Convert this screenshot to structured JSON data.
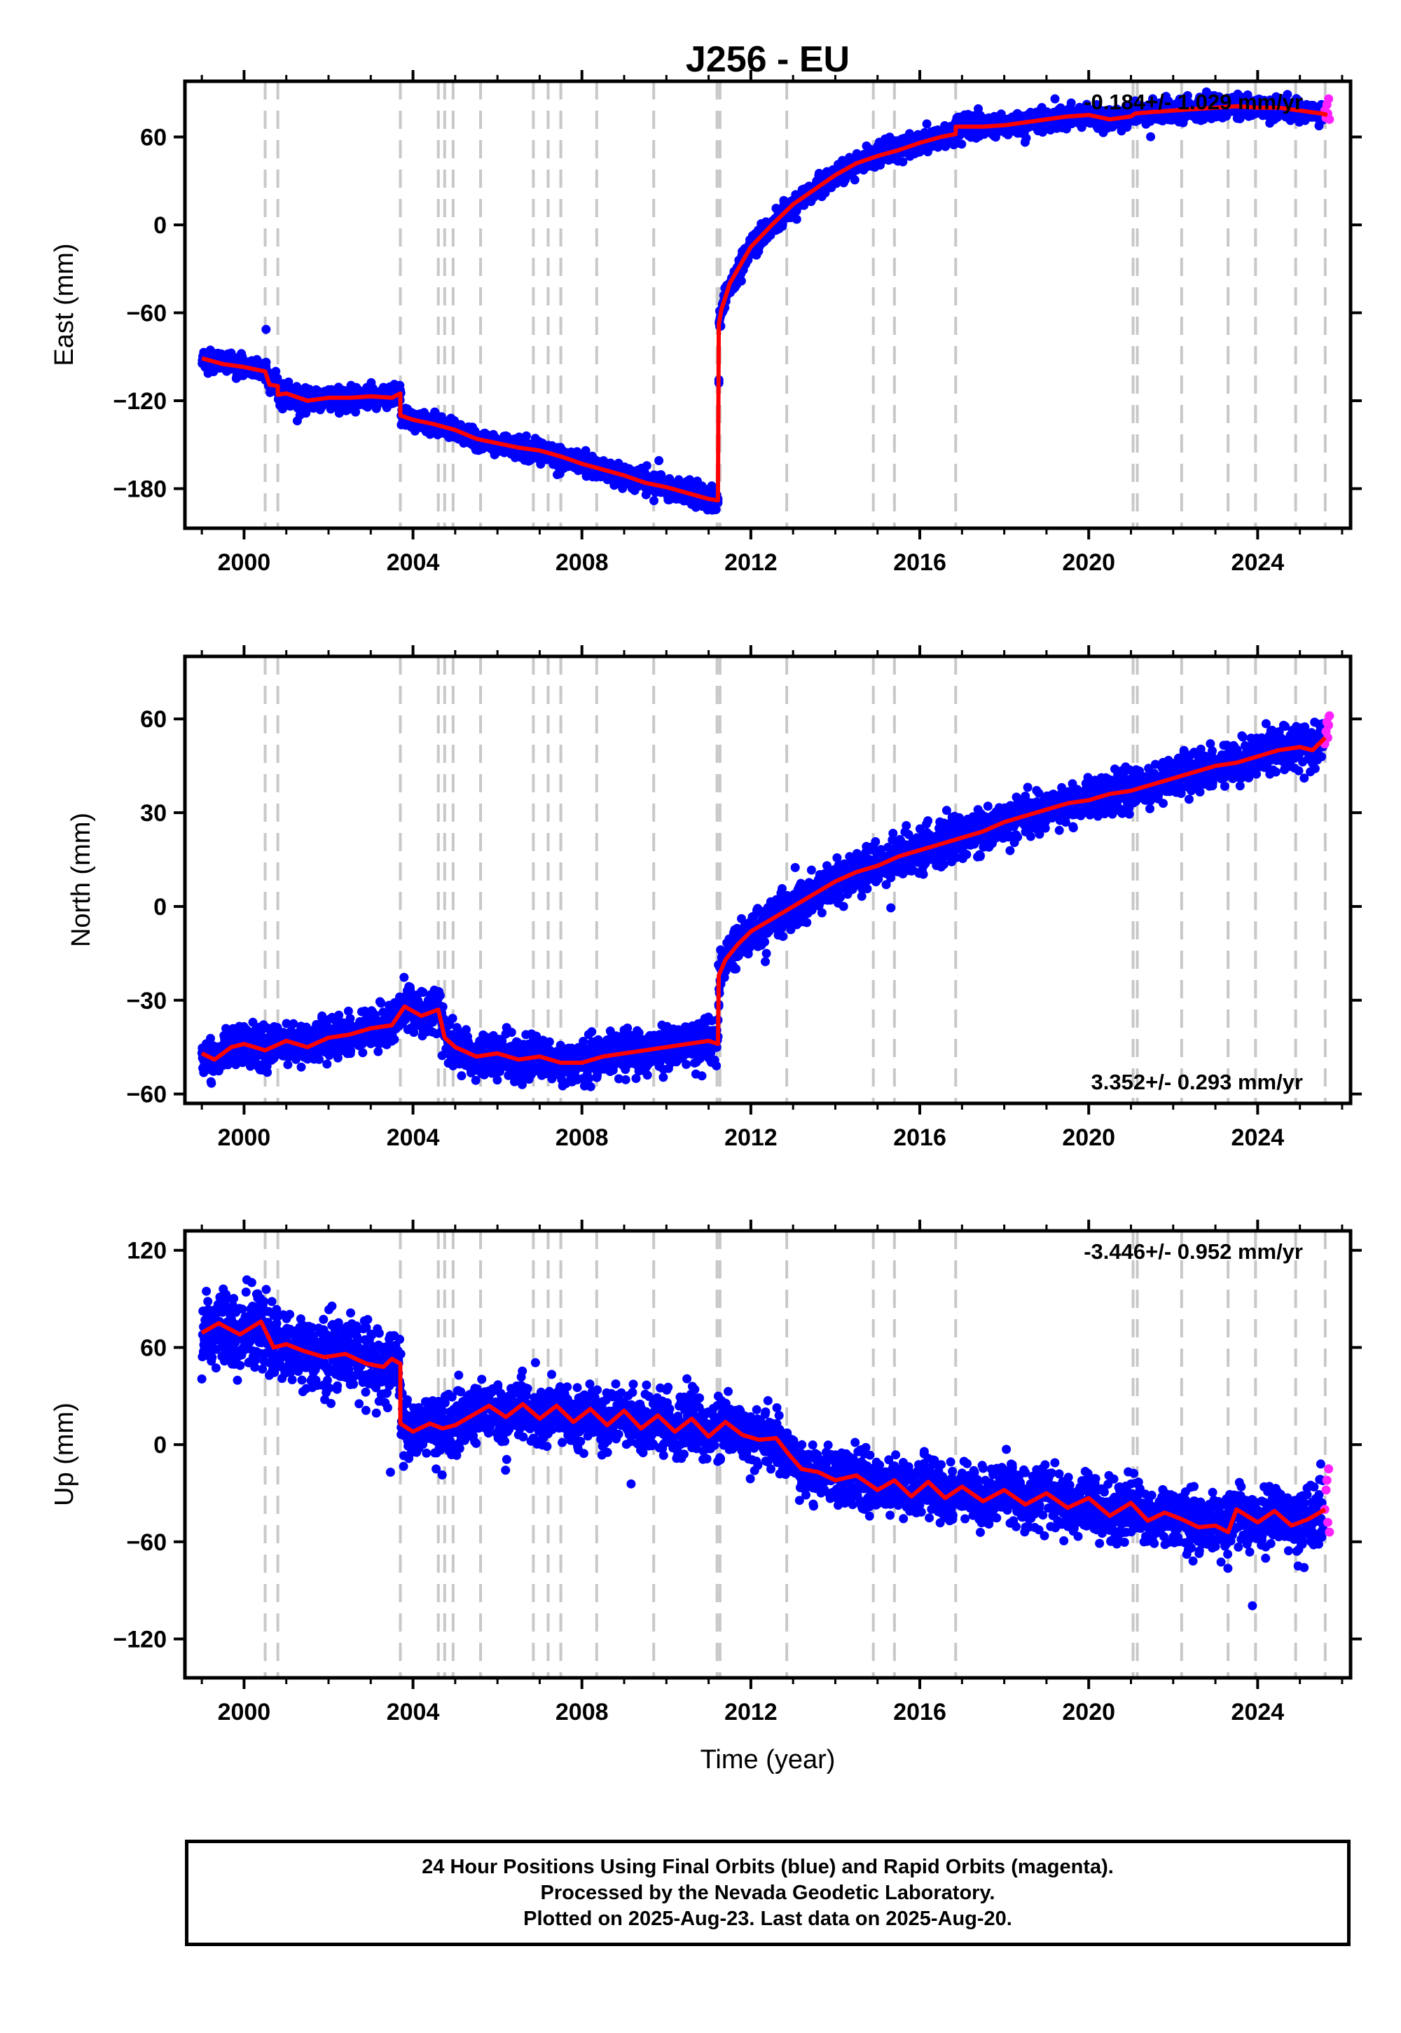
{
  "figure": {
    "title": "J256 - EU",
    "xlabel": "Time (year)",
    "footer_lines": [
      "24 Hour Positions Using Final Orbits (blue) and Rapid Orbits (magenta).",
      "Processed by the Nevada Geodetic Laboratory.",
      "Plotted on 2025-Aug-23. Last data on 2025-Aug-20."
    ],
    "colors": {
      "final": "#0000ff",
      "rapid": "#ff22ff",
      "model": "#ff0000",
      "event_line": "#c8c8c8"
    }
  },
  "chart_data": [
    {
      "type": "scatter",
      "ylabel": "East (mm)",
      "rate": "-0.184+/- 1.029 mm/yr",
      "rate_position": "top-right",
      "xlim": [
        1998.6,
        2026.2
      ],
      "ylim": [
        -207,
        98
      ],
      "xticks": [
        2000,
        2004,
        2008,
        2012,
        2016,
        2020,
        2024
      ],
      "yticks": [
        -180,
        -120,
        -60,
        0,
        60
      ],
      "xticklabels": [
        "2000",
        "2004",
        "2008",
        "2012",
        "2016",
        "2020",
        "2024"
      ],
      "yticklabels": [
        "−180",
        "−120",
        "−60",
        "0",
        "60"
      ],
      "event_lines": [
        2000.5,
        2000.8,
        2003.7,
        2004.6,
        2004.75,
        2004.95,
        2005.6,
        2006.85,
        2007.2,
        2007.5,
        2008.35,
        2009.7,
        2011.2,
        2011.27,
        2012.85,
        2014.9,
        2015.4,
        2016.85,
        2021.05,
        2021.15,
        2022.2,
        2023.3,
        2023.95,
        2024.9,
        2025.6
      ],
      "trend_segments": [
        {
          "t0": 1999.0,
          "t1": 2011.2,
          "y0": -92,
          "y1": -188
        },
        {
          "t0": 2011.2,
          "t1": 2025.7,
          "y0": -63,
          "y1": 75
        }
      ],
      "model_curve": [
        [
          1999.0,
          -91
        ],
        [
          1999.5,
          -95
        ],
        [
          2000.0,
          -97
        ],
        [
          2000.5,
          -100
        ],
        [
          2000.6,
          -109
        ],
        [
          2000.8,
          -110
        ],
        [
          2000.8,
          -116
        ],
        [
          2001.0,
          -115
        ],
        [
          2001.5,
          -120
        ],
        [
          2002.0,
          -118
        ],
        [
          2002.5,
          -118
        ],
        [
          2003.0,
          -117
        ],
        [
          2003.5,
          -118
        ],
        [
          2003.7,
          -115
        ],
        [
          2003.7,
          -130
        ],
        [
          2004.0,
          -133
        ],
        [
          2004.5,
          -136
        ],
        [
          2005.0,
          -140
        ],
        [
          2005.5,
          -146
        ],
        [
          2006.0,
          -149
        ],
        [
          2006.5,
          -152
        ],
        [
          2007.0,
          -154
        ],
        [
          2007.5,
          -158
        ],
        [
          2008.0,
          -163
        ],
        [
          2008.5,
          -167
        ],
        [
          2009.0,
          -171
        ],
        [
          2009.5,
          -176
        ],
        [
          2010.0,
          -179
        ],
        [
          2010.5,
          -183
        ],
        [
          2011.0,
          -187
        ],
        [
          2011.22,
          -188
        ],
        [
          2011.24,
          -68
        ],
        [
          2011.3,
          -58
        ],
        [
          2011.5,
          -40
        ],
        [
          2011.8,
          -25
        ],
        [
          2012.0,
          -15
        ],
        [
          2012.5,
          0
        ],
        [
          2013.0,
          14
        ],
        [
          2013.5,
          24
        ],
        [
          2014.0,
          34
        ],
        [
          2014.5,
          42
        ],
        [
          2015.0,
          47
        ],
        [
          2015.5,
          51
        ],
        [
          2016.0,
          56
        ],
        [
          2016.5,
          60
        ],
        [
          2016.85,
          62
        ],
        [
          2016.85,
          67
        ],
        [
          2017.5,
          67
        ],
        [
          2018.0,
          68
        ],
        [
          2018.5,
          70
        ],
        [
          2019.0,
          72
        ],
        [
          2019.5,
          74
        ],
        [
          2020.0,
          75
        ],
        [
          2020.5,
          72
        ],
        [
          2021.0,
          74
        ],
        [
          2021.1,
          76
        ],
        [
          2021.5,
          77
        ],
        [
          2022.0,
          78
        ],
        [
          2022.5,
          79
        ],
        [
          2023.0,
          80
        ],
        [
          2023.5,
          81
        ],
        [
          2024.0,
          80
        ],
        [
          2024.5,
          80
        ],
        [
          2025.0,
          78
        ],
        [
          2025.5,
          76
        ],
        [
          2025.65,
          75
        ]
      ],
      "noise_mm": 3.5,
      "rapid_points": [
        [
          2025.55,
          78
        ],
        [
          2025.58,
          73
        ],
        [
          2025.6,
          82
        ],
        [
          2025.62,
          76
        ],
        [
          2025.64,
          86
        ],
        [
          2025.66,
          72
        ]
      ]
    },
    {
      "type": "scatter",
      "ylabel": "North (mm)",
      "rate": "3.352+/- 0.293 mm/yr",
      "rate_position": "bottom-right",
      "xlim": [
        1998.6,
        2026.2
      ],
      "ylim": [
        -63,
        80
      ],
      "xticks": [
        2000,
        2004,
        2008,
        2012,
        2016,
        2020,
        2024
      ],
      "yticks": [
        -60,
        -30,
        0,
        30,
        60
      ],
      "xticklabels": [
        "2000",
        "2004",
        "2008",
        "2012",
        "2016",
        "2020",
        "2024"
      ],
      "yticklabels": [
        "−60",
        "−30",
        "0",
        "30",
        "60"
      ],
      "event_lines": [
        2000.5,
        2000.8,
        2003.7,
        2004.6,
        2004.75,
        2004.95,
        2005.6,
        2006.85,
        2007.2,
        2007.5,
        2008.35,
        2009.7,
        2011.2,
        2011.27,
        2012.85,
        2014.9,
        2015.4,
        2016.85,
        2021.05,
        2021.15,
        2022.2,
        2023.3,
        2023.95,
        2024.9,
        2025.6
      ],
      "model_curve": [
        [
          1999.0,
          -47
        ],
        [
          1999.3,
          -49
        ],
        [
          1999.7,
          -45
        ],
        [
          2000.0,
          -44
        ],
        [
          2000.5,
          -46
        ],
        [
          2001.0,
          -43
        ],
        [
          2001.5,
          -45
        ],
        [
          2002.0,
          -42
        ],
        [
          2002.5,
          -41
        ],
        [
          2003.0,
          -39
        ],
        [
          2003.5,
          -38
        ],
        [
          2003.8,
          -32
        ],
        [
          2004.2,
          -35
        ],
        [
          2004.6,
          -33
        ],
        [
          2004.75,
          -42
        ],
        [
          2005.0,
          -45
        ],
        [
          2005.5,
          -48
        ],
        [
          2006.0,
          -47
        ],
        [
          2006.5,
          -49
        ],
        [
          2007.0,
          -48
        ],
        [
          2007.5,
          -50
        ],
        [
          2008.0,
          -50
        ],
        [
          2008.5,
          -48
        ],
        [
          2009.0,
          -47
        ],
        [
          2009.5,
          -46
        ],
        [
          2010.0,
          -45
        ],
        [
          2010.5,
          -44
        ],
        [
          2011.0,
          -43
        ],
        [
          2011.22,
          -44
        ],
        [
          2011.24,
          -22
        ],
        [
          2011.4,
          -17
        ],
        [
          2011.7,
          -12
        ],
        [
          2012.0,
          -8
        ],
        [
          2012.5,
          -4
        ],
        [
          2013.0,
          0
        ],
        [
          2013.5,
          4
        ],
        [
          2014.0,
          8
        ],
        [
          2014.5,
          11
        ],
        [
          2015.0,
          13
        ],
        [
          2015.5,
          16
        ],
        [
          2016.0,
          18
        ],
        [
          2016.5,
          20
        ],
        [
          2017.0,
          22
        ],
        [
          2017.5,
          24
        ],
        [
          2018.0,
          27
        ],
        [
          2018.5,
          29
        ],
        [
          2019.0,
          31
        ],
        [
          2019.5,
          33
        ],
        [
          2020.0,
          34
        ],
        [
          2020.5,
          36
        ],
        [
          2021.0,
          37
        ],
        [
          2021.5,
          39
        ],
        [
          2022.0,
          41
        ],
        [
          2022.5,
          43
        ],
        [
          2023.0,
          45
        ],
        [
          2023.5,
          46
        ],
        [
          2024.0,
          48
        ],
        [
          2024.5,
          50
        ],
        [
          2025.0,
          51
        ],
        [
          2025.3,
          50
        ],
        [
          2025.6,
          54
        ]
      ],
      "noise_mm": 3.2,
      "rapid_points": [
        [
          2025.55,
          52
        ],
        [
          2025.58,
          56
        ],
        [
          2025.6,
          59
        ],
        [
          2025.62,
          54
        ],
        [
          2025.64,
          58
        ],
        [
          2025.66,
          61
        ]
      ]
    },
    {
      "type": "scatter",
      "ylabel": "Up (mm)",
      "rate": "-3.446+/- 0.952 mm/yr",
      "rate_position": "top-right",
      "xlim": [
        1998.6,
        2026.2
      ],
      "ylim": [
        -144,
        132
      ],
      "xticks": [
        2000,
        2004,
        2008,
        2012,
        2016,
        2020,
        2024
      ],
      "yticks": [
        -120,
        -60,
        0,
        60,
        120
      ],
      "xticklabels": [
        "2000",
        "2004",
        "2008",
        "2012",
        "2016",
        "2020",
        "2024"
      ],
      "yticklabels": [
        "−120",
        "−60",
        "0",
        "60",
        "120"
      ],
      "event_lines": [
        2000.5,
        2000.8,
        2003.7,
        2004.6,
        2004.75,
        2004.95,
        2005.6,
        2006.85,
        2007.2,
        2007.5,
        2008.35,
        2009.7,
        2011.2,
        2011.27,
        2012.85,
        2014.9,
        2015.4,
        2016.85,
        2021.05,
        2021.15,
        2022.2,
        2023.3,
        2023.95,
        2024.9,
        2025.6
      ],
      "model_curve": [
        [
          1999.0,
          69
        ],
        [
          1999.4,
          75
        ],
        [
          1999.9,
          68
        ],
        [
          2000.4,
          76
        ],
        [
          2000.7,
          60
        ],
        [
          2001.0,
          62
        ],
        [
          2001.4,
          58
        ],
        [
          2001.9,
          54
        ],
        [
          2002.4,
          56
        ],
        [
          2002.9,
          50
        ],
        [
          2003.3,
          48
        ],
        [
          2003.5,
          53
        ],
        [
          2003.7,
          50
        ],
        [
          2003.7,
          13
        ],
        [
          2004.0,
          8
        ],
        [
          2004.4,
          13
        ],
        [
          2004.7,
          10
        ],
        [
          2005.0,
          12
        ],
        [
          2005.4,
          18
        ],
        [
          2005.8,
          24
        ],
        [
          2006.2,
          17
        ],
        [
          2006.6,
          25
        ],
        [
          2007.0,
          16
        ],
        [
          2007.4,
          24
        ],
        [
          2007.8,
          14
        ],
        [
          2008.2,
          22
        ],
        [
          2008.6,
          12
        ],
        [
          2009.0,
          21
        ],
        [
          2009.4,
          10
        ],
        [
          2009.8,
          18
        ],
        [
          2010.2,
          8
        ],
        [
          2010.6,
          16
        ],
        [
          2011.0,
          5
        ],
        [
          2011.4,
          14
        ],
        [
          2011.8,
          6
        ],
        [
          2012.2,
          3
        ],
        [
          2012.6,
          4
        ],
        [
          2012.9,
          -6
        ],
        [
          2013.2,
          -15
        ],
        [
          2013.6,
          -17
        ],
        [
          2014.0,
          -22
        ],
        [
          2014.5,
          -19
        ],
        [
          2015.0,
          -28
        ],
        [
          2015.4,
          -22
        ],
        [
          2015.8,
          -32
        ],
        [
          2016.2,
          -23
        ],
        [
          2016.6,
          -33
        ],
        [
          2017.0,
          -26
        ],
        [
          2017.5,
          -35
        ],
        [
          2018.0,
          -28
        ],
        [
          2018.5,
          -37
        ],
        [
          2019.0,
          -30
        ],
        [
          2019.5,
          -39
        ],
        [
          2020.0,
          -33
        ],
        [
          2020.5,
          -44
        ],
        [
          2021.0,
          -36
        ],
        [
          2021.4,
          -47
        ],
        [
          2021.8,
          -42
        ],
        [
          2022.2,
          -46
        ],
        [
          2022.6,
          -51
        ],
        [
          2023.0,
          -50
        ],
        [
          2023.3,
          -54
        ],
        [
          2023.5,
          -40
        ],
        [
          2024.0,
          -48
        ],
        [
          2024.4,
          -41
        ],
        [
          2024.8,
          -50
        ],
        [
          2025.2,
          -46
        ],
        [
          2025.6,
          -40
        ]
      ],
      "noise_mm": 8.5,
      "rapid_points": [
        [
          2025.55,
          -40
        ],
        [
          2025.58,
          -28
        ],
        [
          2025.6,
          -22
        ],
        [
          2025.62,
          -48
        ],
        [
          2025.64,
          -15
        ],
        [
          2025.66,
          -54
        ]
      ]
    }
  ]
}
